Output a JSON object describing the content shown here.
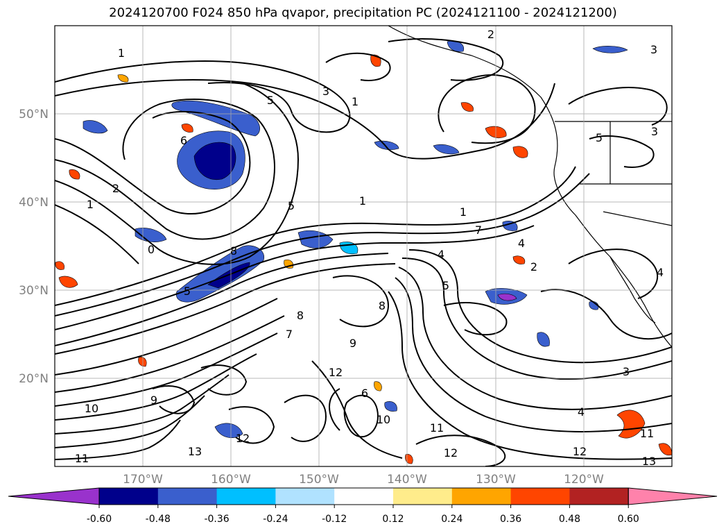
{
  "title": "2024120700 F024 850 hPa qvapor, precipitation PC (2024121100 - 2024121200)",
  "map": {
    "lat_labels": [
      "50°N",
      "40°N",
      "30°N",
      "20°N"
    ],
    "lon_labels": [
      "170°W",
      "160°W",
      "150°W",
      "140°W",
      "130°W",
      "120°W"
    ],
    "contour_labels": [
      "2",
      "3",
      "1",
      "5",
      "6",
      "1",
      "2",
      "1",
      "0",
      "1",
      "8",
      "5",
      "1",
      "7",
      "4",
      "5",
      "3",
      "8",
      "9",
      "7",
      "8",
      "9",
      "10",
      "11",
      "12",
      "13",
      "12",
      "4",
      "6",
      "11",
      "12",
      "13",
      "10",
      "11",
      "12",
      "3",
      "4",
      "5",
      "2",
      "3",
      "5",
      "4"
    ]
  },
  "colorbar": {
    "ticks": [
      "-0.60",
      "-0.48",
      "-0.36",
      "-0.24",
      "-0.12",
      "0.12",
      "0.24",
      "0.36",
      "0.48",
      "0.60"
    ],
    "colors": [
      "#9932cc",
      "#00008b",
      "#3a5fcd",
      "#00bfff",
      "#b0e2ff",
      "#ffffff",
      "#ffec8b",
      "#ffa500",
      "#ff4500",
      "#b22222",
      "#ff82ab"
    ]
  }
}
